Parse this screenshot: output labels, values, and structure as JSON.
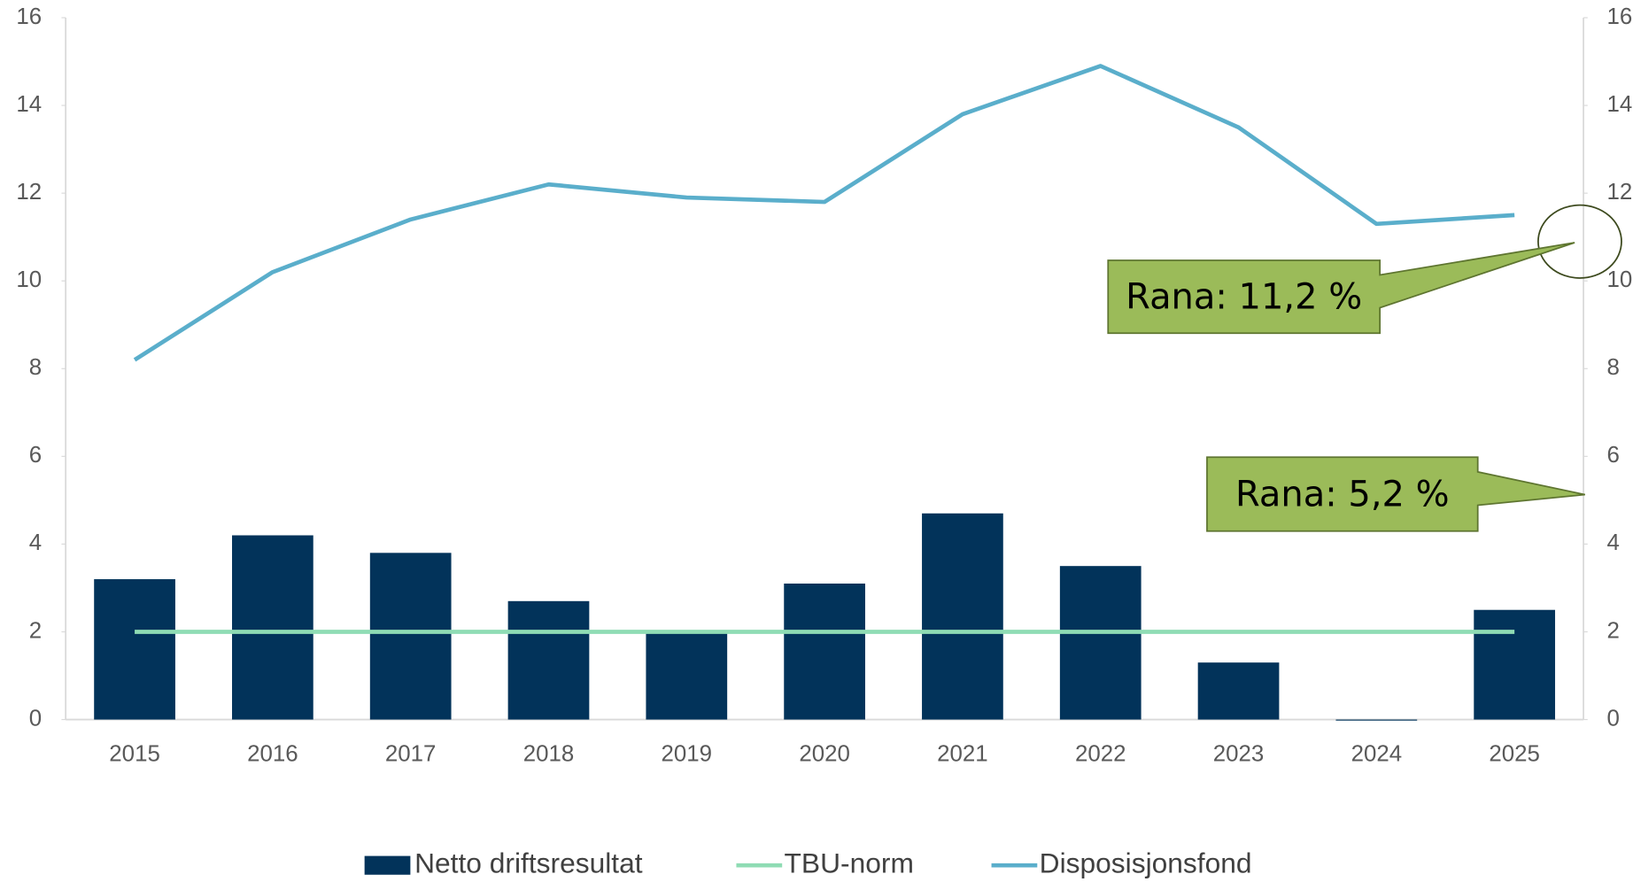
{
  "chart_data": {
    "type": "bar",
    "categories": [
      "2015",
      "2016",
      "2017",
      "2018",
      "2019",
      "2020",
      "2021",
      "2022",
      "2023",
      "2024",
      "2025"
    ],
    "series": [
      {
        "name": "Netto driftsresultat",
        "type": "bar",
        "color": "#02335a",
        "values": [
          3.2,
          4.2,
          3.8,
          2.7,
          2.0,
          3.1,
          4.7,
          3.5,
          1.3,
          0,
          2.5
        ]
      },
      {
        "name": "TBU-norm",
        "type": "line",
        "color": "#8fdcb4",
        "values": [
          2,
          2,
          2,
          2,
          2,
          2,
          2,
          2,
          2,
          2,
          2
        ]
      },
      {
        "name": "Disposisjonsfond",
        "type": "line",
        "color": "#5aaecb",
        "values": [
          8.2,
          10.2,
          11.4,
          12.2,
          11.9,
          11.8,
          13.8,
          14.9,
          13.5,
          11.3,
          11.5
        ]
      }
    ],
    "ylim": [
      0,
      16
    ],
    "yticks": [
      0,
      2,
      4,
      6,
      8,
      10,
      12,
      14,
      16
    ],
    "y2lim": [
      0,
      16
    ],
    "y2ticks": [
      0,
      2,
      4,
      6,
      8,
      10,
      12,
      14,
      16
    ],
    "annotations": [
      "Rana: 11,2 %",
      "Rana: 5,2 %"
    ],
    "annotation_color": "#9bbb59",
    "legend": "bottom"
  }
}
